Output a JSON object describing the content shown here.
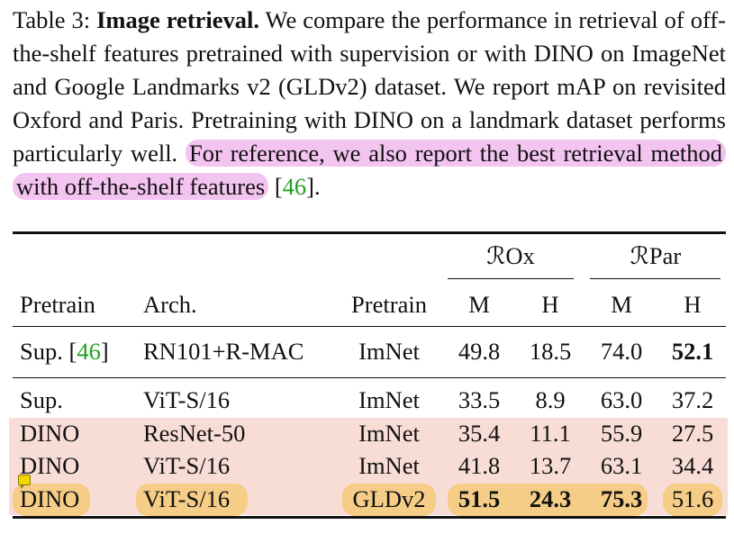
{
  "caption": {
    "label": "Table 3: ",
    "title": "Image retrieval.",
    "text": " We compare the performance in retrieval of off-the-shelf features pretrained with supervision or with DINO on ImageNet and Google Landmarks v2 (GLDv2) dataset.  We report mAP on revisited Oxford and Paris. Pretraining with DINO on a landmark dataset performs particularly well. ",
    "highlight": "For reference, we also report the best retrieval method with off-the-shelf features",
    "cite_open": " [",
    "cite": "46",
    "cite_close": "]."
  },
  "table": {
    "group_headers": [
      "ℛOx",
      "ℛPar"
    ],
    "columns": [
      "Pretrain",
      "Arch.",
      "Pretrain",
      "M",
      "H",
      "M",
      "H"
    ],
    "rows": [
      {
        "pretrain": "Sup.",
        "cite": "46",
        "arch": "RN101+R-MAC",
        "data": "ImNet",
        "rox_m": "49.8",
        "rox_h": "18.5",
        "rpar_m": "74.0",
        "rpar_h": "52.1"
      },
      {
        "pretrain": "Sup.",
        "arch": "ViT-S/16",
        "data": "ImNet",
        "rox_m": "33.5",
        "rox_h": "8.9",
        "rpar_m": "63.0",
        "rpar_h": "37.2"
      },
      {
        "pretrain": "DINO",
        "arch": "ResNet-50",
        "data": "ImNet",
        "rox_m": "35.4",
        "rox_h": "11.1",
        "rpar_m": "55.9",
        "rpar_h": "27.5"
      },
      {
        "pretrain": "DINO",
        "arch": "ViT-S/16",
        "data": "ImNet",
        "rox_m": "41.8",
        "rox_h": "13.7",
        "rpar_m": "63.1",
        "rpar_h": "34.4"
      },
      {
        "pretrain": "DINO",
        "arch": "ViT-S/16",
        "data": "GLDv2",
        "rox_m": "51.5",
        "rox_h": "24.3",
        "rpar_m": "75.3",
        "rpar_h": "51.6"
      }
    ]
  },
  "colors": {
    "pink_highlight": "#f3c4f0",
    "row_band": "#f7ddd6",
    "orange_highlight": "#f6cd86",
    "citation": "#21a021"
  },
  "icons": [
    "sticky-note-icon"
  ]
}
